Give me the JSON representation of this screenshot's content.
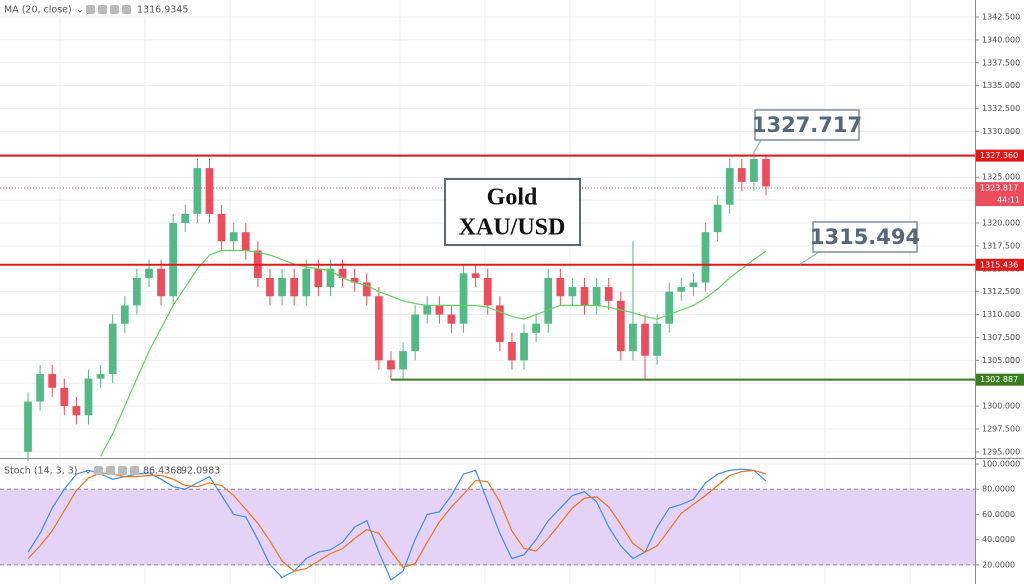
{
  "chart_data": [
    {
      "type": "candlestick",
      "title": "MA (20, close)",
      "up_color": "#53b987",
      "down_color": "#eb4d5c",
      "open": [
        1295,
        1300.5,
        1303.5,
        1302,
        1300,
        1299,
        1303,
        1303.5,
        1309,
        1311,
        1314,
        1315,
        1312,
        1320,
        1321,
        1326,
        1321,
        1318,
        1319,
        1317,
        1314,
        1312,
        1314,
        1312,
        1315,
        1313,
        1315,
        1314,
        1313.5,
        1312,
        1305,
        1304,
        1306,
        1310,
        1311,
        1310,
        1309,
        1314.5,
        1314,
        1311,
        1307,
        1305,
        1308,
        1309,
        1314,
        1312,
        1313,
        1311,
        1313,
        1311.5,
        1306,
        1309,
        1305.5,
        1309,
        1312.5,
        1313,
        1313.5,
        1319,
        1322,
        1326,
        1324.5,
        1327
      ],
      "high": [
        1301.5,
        1304.5,
        1304.5,
        1303,
        1301,
        1304,
        1304.5,
        1310,
        1312,
        1315,
        1316,
        1316,
        1321,
        1322,
        1327,
        1327,
        1322,
        1320,
        1320,
        1318,
        1315,
        1315,
        1315,
        1316,
        1316,
        1316,
        1316,
        1315,
        1314.5,
        1313,
        1306,
        1307,
        1311,
        1312,
        1312,
        1311,
        1315.5,
        1315.5,
        1315,
        1312,
        1308,
        1309,
        1310,
        1315,
        1315,
        1314,
        1314,
        1314,
        1314,
        1312.5,
        1318,
        1310,
        1310,
        1313.5,
        1314,
        1314.5,
        1320,
        1323,
        1327,
        1327,
        1327.717,
        1327.5
      ],
      "low": [
        1294,
        1299.5,
        1301,
        1299,
        1298,
        1298,
        1302,
        1302.5,
        1308,
        1310,
        1313,
        1311,
        1311,
        1319,
        1320,
        1320,
        1317,
        1317,
        1316,
        1313,
        1311,
        1311,
        1311,
        1311,
        1312,
        1312,
        1313,
        1312.5,
        1311,
        1304,
        1302.887,
        1303,
        1305,
        1309,
        1309,
        1308,
        1308,
        1313,
        1310,
        1306,
        1304,
        1304,
        1307,
        1308,
        1311,
        1311,
        1310,
        1310,
        1310.5,
        1305,
        1305,
        1303,
        1304.5,
        1308,
        1311.5,
        1312,
        1312.5,
        1318,
        1321,
        1323.5,
        1323.5,
        1323
      ],
      "close": [
        1300.5,
        1303.5,
        1302,
        1300,
        1299,
        1303,
        1303.5,
        1309,
        1311,
        1314,
        1315,
        1312,
        1320,
        1321,
        1326,
        1321,
        1318,
        1319,
        1317,
        1314,
        1312,
        1314,
        1312,
        1315,
        1313,
        1315,
        1314,
        1313.5,
        1312,
        1305,
        1304,
        1306,
        1310,
        1311,
        1310,
        1309,
        1314.5,
        1314,
        1311,
        1307,
        1305,
        1308,
        1309,
        1314,
        1312,
        1313,
        1311,
        1313,
        1311.5,
        1306,
        1309,
        1305.5,
        1309,
        1312.5,
        1313,
        1313.5,
        1319,
        1322,
        1326,
        1324.5,
        1327,
        1324
      ],
      "series": [
        {
          "name": "MA (20, close)",
          "color": "#5fd35f",
          "values": [
            null,
            null,
            null,
            null,
            null,
            null,
            1294.5,
            1297,
            1300,
            1303,
            1306,
            1308.5,
            1311,
            1313,
            1315,
            1316.5,
            1317,
            1317,
            1317,
            1316.8,
            1316.5,
            1316,
            1315.5,
            1315.2,
            1315,
            1314.8,
            1314,
            1313.5,
            1313.2,
            1312.5,
            1312,
            1311.5,
            1311.2,
            1311,
            1311,
            1311,
            1311,
            1311,
            1310.8,
            1310.3,
            1309.8,
            1309.5,
            1310,
            1310.5,
            1311,
            1311,
            1311,
            1311,
            1310.8,
            1310.5,
            1310.2,
            1309.8,
            1309.5,
            1310,
            1310.5,
            1311,
            1311.8,
            1312.8,
            1314,
            1315,
            1316,
            1316.9345
          ]
        }
      ],
      "ylim": [
        1294.33,
        1344.36
      ],
      "yticks": [
        {
          "value": 1295,
          "label": "1295.000"
        },
        {
          "value": 1297.5,
          "label": "1297.500"
        },
        {
          "value": 1300,
          "label": "1300.000"
        },
        {
          "value": 1302.5,
          "label": "1302.500"
        },
        {
          "value": 1305,
          "label": "1305.000"
        },
        {
          "value": 1307.5,
          "label": "1307.500"
        },
        {
          "value": 1310,
          "label": "1310.000"
        },
        {
          "value": 1312.5,
          "label": "1312.500"
        },
        {
          "value": 1315,
          "label": "1315.000"
        },
        {
          "value": 1317.5,
          "label": "1317.500"
        },
        {
          "value": 1320,
          "label": "1320.000"
        },
        {
          "value": 1322.5,
          "label": "1322.500"
        },
        {
          "value": 1325,
          "label": "1325.000"
        },
        {
          "value": 1327.5,
          "label": "1327.500"
        },
        {
          "value": 1330,
          "label": "1330.000"
        },
        {
          "value": 1332.5,
          "label": "1332.500"
        },
        {
          "value": 1335,
          "label": "1335.000"
        },
        {
          "value": 1337.5,
          "label": "1337.500"
        },
        {
          "value": 1340,
          "label": "1340.000"
        },
        {
          "value": 1342.5,
          "label": "1342.500"
        }
      ],
      "levels": [
        {
          "value": 1327.36,
          "label": "1327.360",
          "color": "#e01818"
        },
        {
          "value": 1315.436,
          "color": "#e01818"
        },
        {
          "value": 1302.887,
          "color": "#3a7d1e"
        }
      ],
      "last_price": 1323.817,
      "countdown": "44:11",
      "annotations": [
        1327.717,
        1315.494
      ],
      "note_title": "Gold",
      "note_subtitle": "XAU/USD"
    },
    {
      "type": "line",
      "title": "Stoch (14, 3, 3)",
      "series": [
        {
          "name": "%K",
          "color": "#3d8fe0",
          "values": [
            30,
            45,
            65,
            80,
            92,
            95,
            92,
            88,
            90,
            92,
            93,
            88,
            82,
            80,
            85,
            90,
            75,
            60,
            58,
            40,
            20,
            10,
            15,
            25,
            30,
            32,
            38,
            50,
            55,
            30,
            8,
            15,
            40,
            60,
            62,
            75,
            92,
            95,
            70,
            45,
            25,
            28,
            40,
            55,
            65,
            75,
            78,
            70,
            50,
            35,
            25,
            30,
            50,
            65,
            68,
            72,
            85,
            92,
            95,
            96,
            95,
            86.4368
          ]
        },
        {
          "name": "%D",
          "color": "#f0731e",
          "values": [
            25,
            35,
            47,
            63,
            79,
            89,
            93,
            92,
            90,
            90,
            91,
            91,
            88,
            83,
            82,
            85,
            83,
            75,
            64,
            53,
            39,
            23,
            15,
            17,
            23,
            29,
            33,
            41,
            48,
            45,
            31,
            18,
            21,
            38,
            54,
            66,
            76,
            87,
            86,
            70,
            47,
            33,
            31,
            41,
            53,
            65,
            73,
            74,
            66,
            52,
            37,
            30,
            35,
            48,
            61,
            68,
            75,
            83,
            91,
            94,
            95,
            92.0983
          ]
        }
      ],
      "band": [
        20,
        80
      ],
      "band_color": "#e4d3f7",
      "ylim": [
        4.8,
        103.2
      ],
      "yticks": [
        {
          "value": 20,
          "label": "20.0000"
        },
        {
          "value": 40,
          "label": "40.0000"
        },
        {
          "value": 60,
          "label": "60.0000"
        },
        {
          "value": 80,
          "label": "80.0000"
        },
        {
          "value": 100,
          "label": "100.0000"
        }
      ]
    }
  ]
}
